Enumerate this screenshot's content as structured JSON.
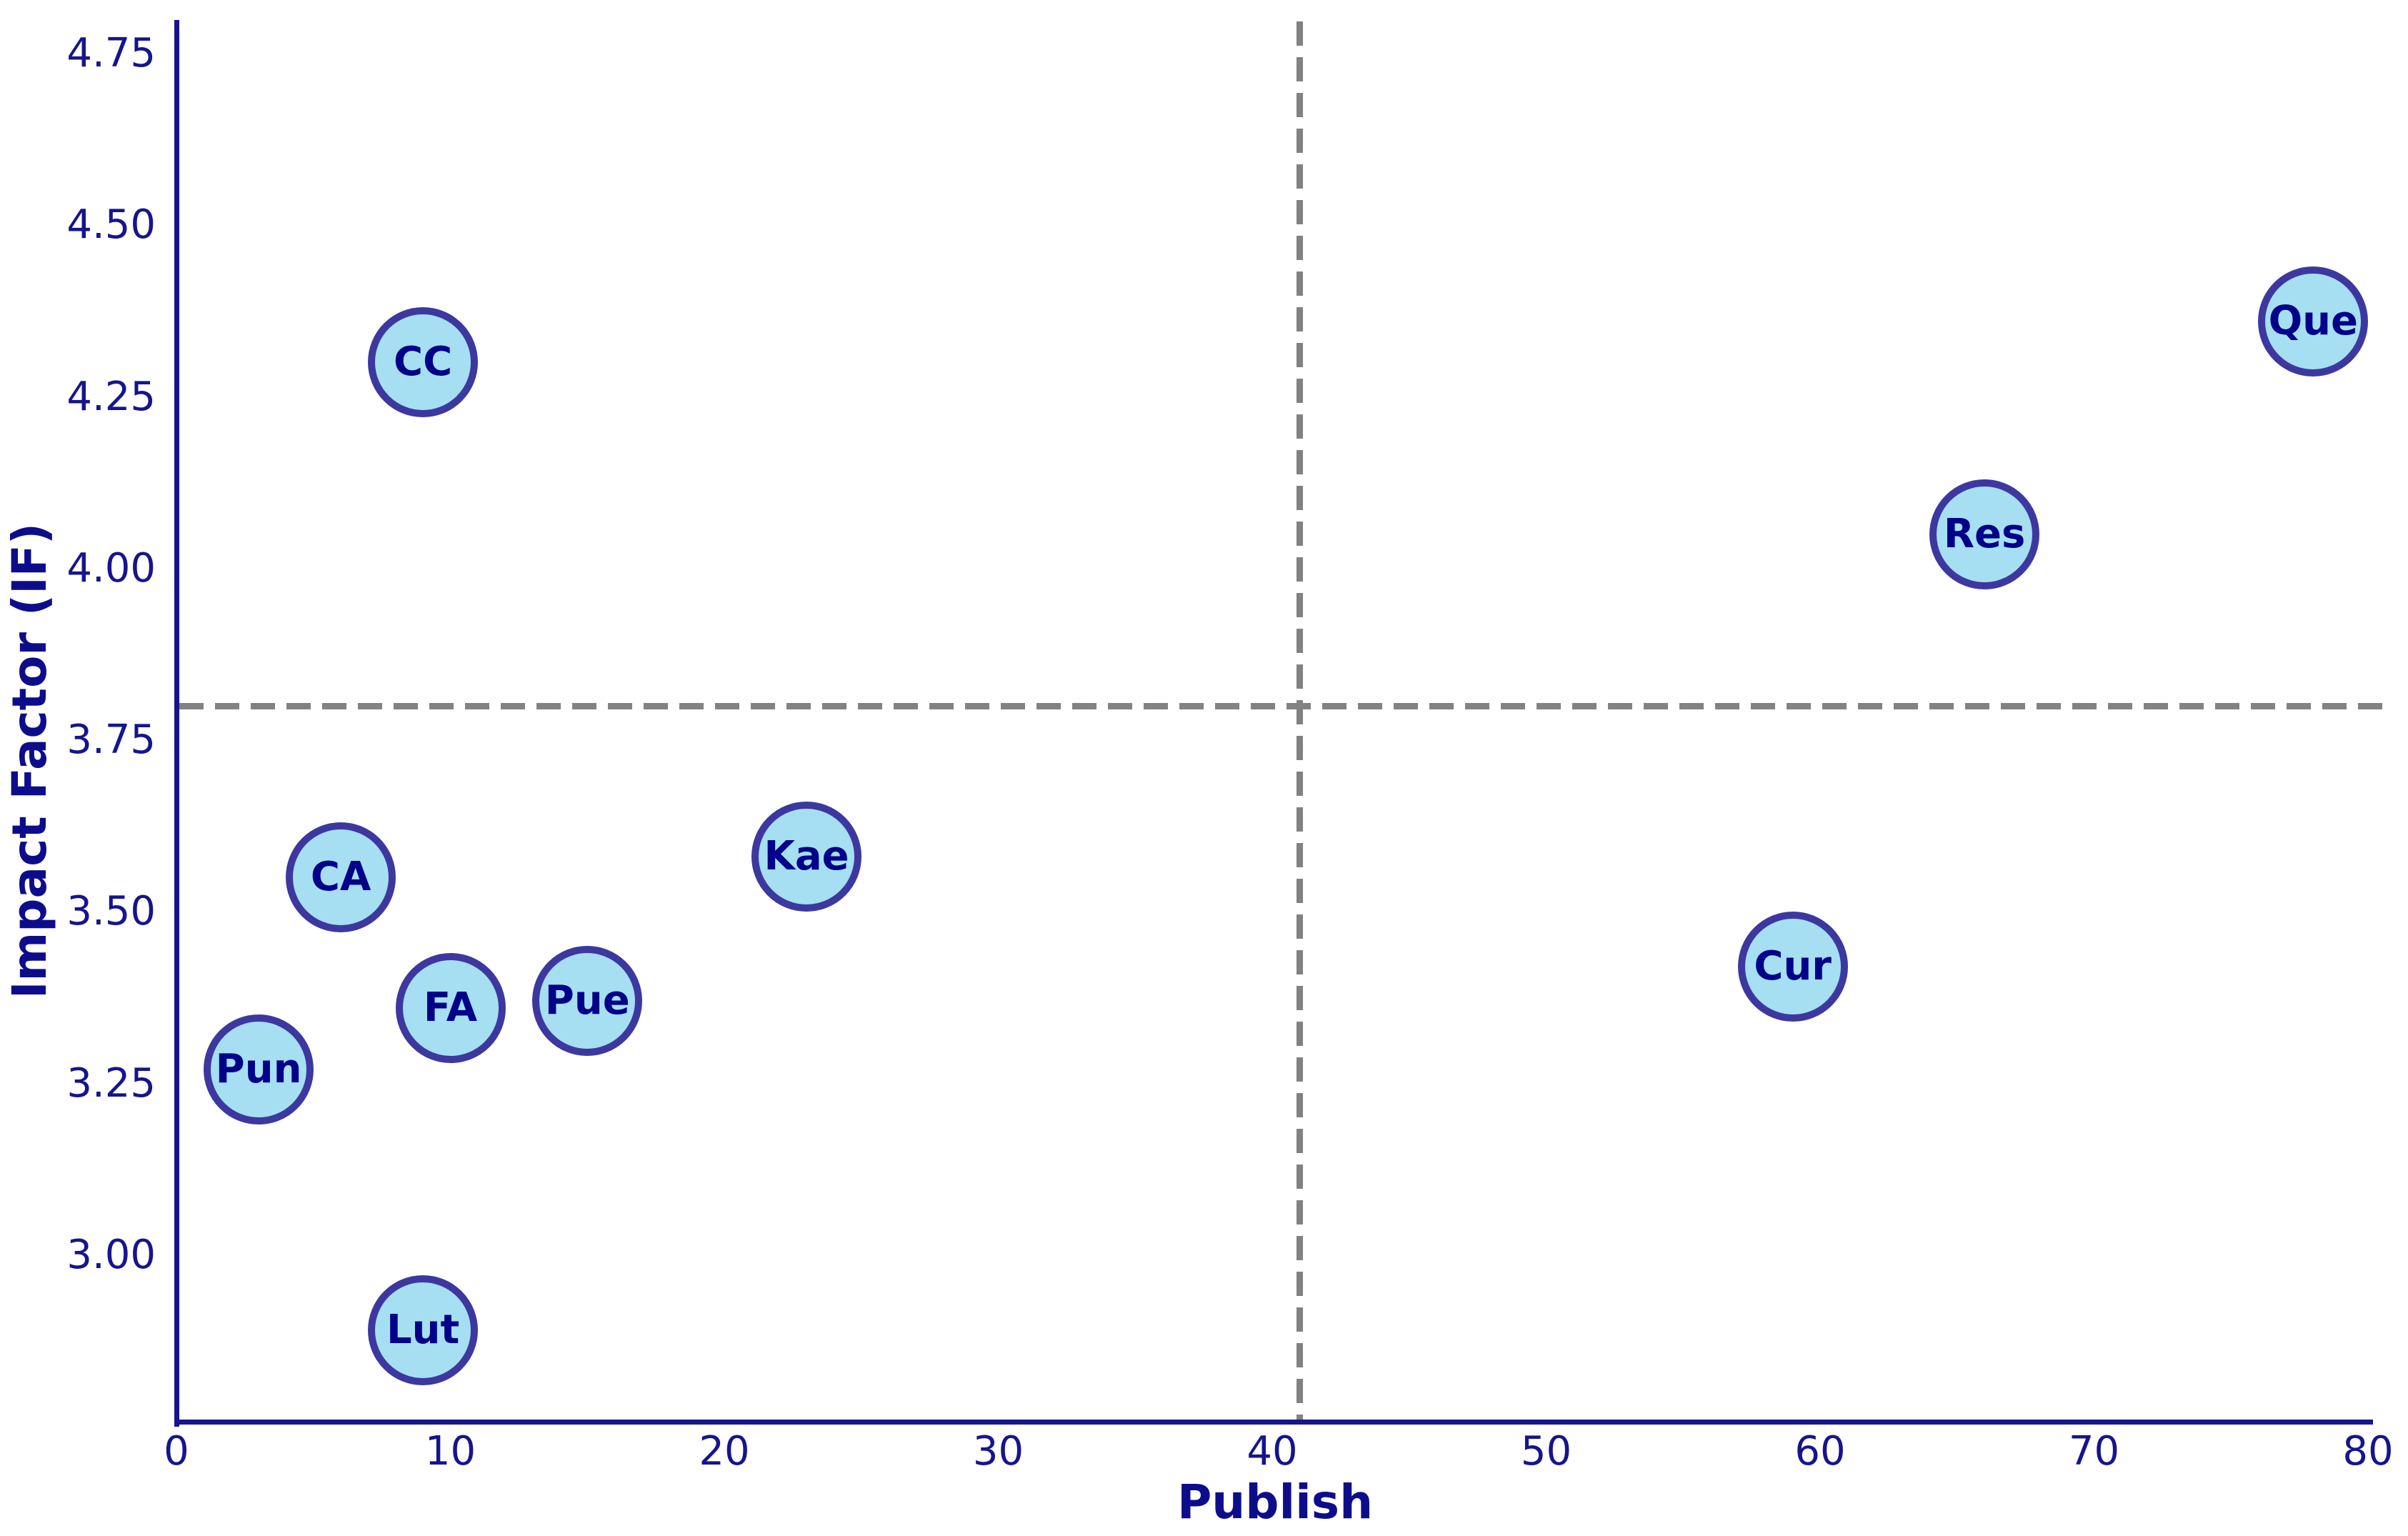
{
  "chart_data": {
    "type": "scatter",
    "title": "",
    "xlabel": "Publish",
    "ylabel": "Impact Factor (IF)",
    "xlim": [
      0,
      80
    ],
    "ylim": [
      2.76,
      4.8
    ],
    "x_tick_labels": [
      "0",
      "10",
      "20",
      "30",
      "40",
      "50",
      "60",
      "70",
      "80"
    ],
    "y_tick_labels": [
      "4.75",
      "4.50",
      "4.25",
      "4.00",
      "3.75",
      "3.50",
      "3.25",
      "3.00"
    ],
    "grid": false,
    "legend": "none",
    "reference_lines": [
      {
        "orientation": "vertical",
        "x": 41,
        "style": "dashed",
        "color": "#828282"
      },
      {
        "orientation": "horizontal",
        "y": 3.8,
        "style": "dashed",
        "color": "#828282"
      }
    ],
    "points": [
      {
        "label": "CC",
        "x": 9,
        "y": 4.3
      },
      {
        "label": "Que",
        "x": 78,
        "y": 4.36
      },
      {
        "label": "Res",
        "x": 66,
        "y": 4.05
      },
      {
        "label": "Kae",
        "x": 23,
        "y": 3.58
      },
      {
        "label": "CA",
        "x": 6,
        "y": 3.55
      },
      {
        "label": "FA",
        "x": 10,
        "y": 3.36
      },
      {
        "label": "Pue",
        "x": 15,
        "y": 3.37
      },
      {
        "label": "Pun",
        "x": 3,
        "y": 3.27
      },
      {
        "label": "Cur",
        "x": 59,
        "y": 3.42
      },
      {
        "label": "Lut",
        "x": 9,
        "y": 2.89
      }
    ],
    "marker_style": {
      "fill_color": "#a6dff1",
      "border_color": "#3c38a0",
      "label_color": "#01018a"
    },
    "axis_color": "#15158d"
  }
}
